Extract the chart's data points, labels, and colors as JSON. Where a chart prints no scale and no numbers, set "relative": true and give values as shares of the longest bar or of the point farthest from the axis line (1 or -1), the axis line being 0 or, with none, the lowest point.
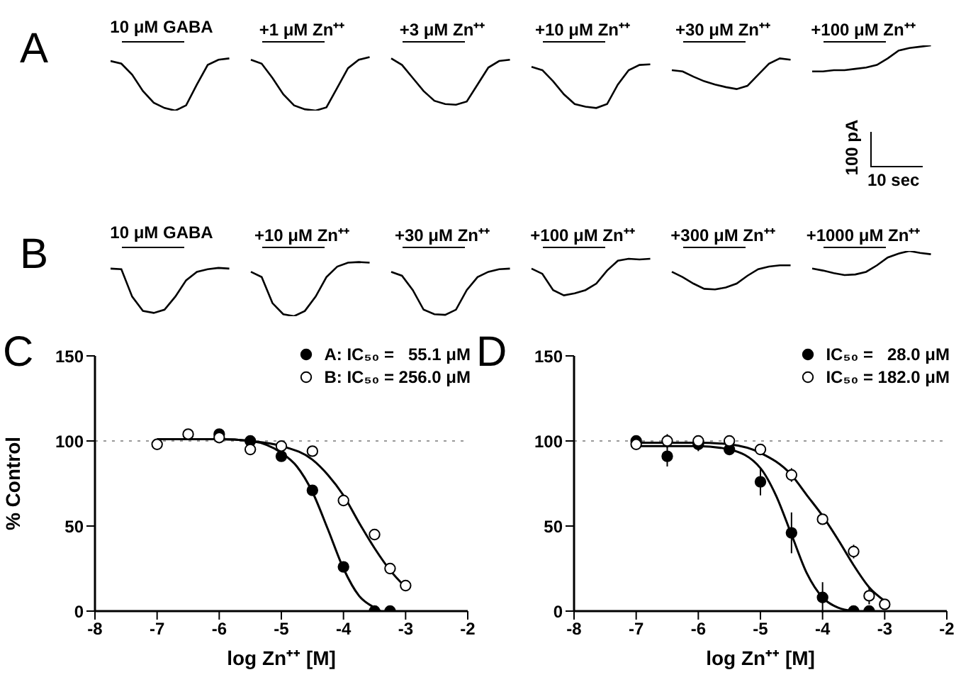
{
  "chart_data": [
    {
      "type": "line",
      "title": "A",
      "relative": true,
      "categories": [
        null,
        null,
        null,
        null,
        null,
        null,
        null,
        null,
        null,
        null,
        null,
        null,
        null,
        null,
        null,
        null,
        null,
        null,
        null,
        null,
        null,
        null,
        null,
        null,
        null,
        null,
        null,
        null,
        null,
        null,
        null,
        null,
        null,
        null,
        null,
        null,
        null,
        null,
        null,
        null,
        null,
        null,
        null,
        null,
        null,
        null,
        null,
        null,
        null,
        null,
        null,
        null,
        null,
        null,
        null,
        null,
        null,
        null,
        null,
        null,
        null,
        null,
        null,
        null,
        null,
        null,
        null,
        null,
        null,
        null,
        null,
        null,
        null,
        null,
        null,
        null,
        null,
        null
      ],
      "series": [
        {
          "color": "#000000",
          "values": [
            0.76,
            0.72,
            0.55,
            0.3,
            0.12,
            0.04,
            0.0,
            0.08,
            0.4,
            0.7,
            0.78,
            0.8,
            null,
            null,
            null,
            null,
            null,
            null,
            null,
            null,
            null,
            null,
            null,
            null,
            null,
            null,
            null,
            null,
            null,
            null,
            null,
            null,
            null,
            null,
            null,
            null,
            null,
            null,
            null,
            null,
            null,
            null,
            null,
            null,
            null,
            null,
            null,
            null,
            null,
            null,
            null,
            null,
            null,
            null,
            null,
            null,
            null,
            null,
            null,
            null,
            null,
            null,
            null,
            null,
            null,
            null,
            null,
            null,
            null,
            null,
            null,
            null,
            null,
            null,
            null,
            null,
            null,
            null
          ]
        },
        {
          "color": "#000000",
          "values": [
            null,
            null,
            null,
            null,
            null,
            null,
            null,
            null,
            null,
            null,
            null,
            null,
            null,
            0.78,
            0.72,
            0.5,
            0.25,
            0.08,
            0.02,
            0.0,
            0.05,
            0.35,
            0.65,
            0.78,
            0.82,
            null,
            null,
            null,
            null,
            null,
            null,
            null,
            null,
            null,
            null,
            null,
            null,
            null,
            null,
            null,
            null,
            null,
            null,
            null,
            null,
            null,
            null,
            null,
            null,
            null,
            null,
            null,
            null,
            null,
            null,
            null,
            null,
            null,
            null,
            null,
            null,
            null,
            null,
            null,
            null,
            null,
            null,
            null,
            null,
            null,
            null,
            null,
            null,
            null,
            null,
            null,
            null,
            null
          ]
        },
        {
          "color": "#000000",
          "values": [
            null,
            null,
            null,
            null,
            null,
            null,
            null,
            null,
            null,
            null,
            null,
            null,
            null,
            null,
            null,
            null,
            null,
            null,
            null,
            null,
            null,
            null,
            null,
            null,
            null,
            null,
            0.8,
            0.7,
            0.5,
            0.3,
            0.15,
            0.1,
            0.09,
            0.14,
            0.4,
            0.66,
            0.76,
            0.78,
            null,
            null,
            null,
            null,
            null,
            null,
            null,
            null,
            null,
            null,
            null,
            null,
            null,
            null,
            null,
            null,
            null,
            null,
            null,
            null,
            null,
            null,
            null,
            null,
            null,
            null,
            null,
            null,
            null,
            null,
            null,
            null,
            null,
            null,
            null,
            null,
            null,
            null,
            null,
            null
          ]
        },
        {
          "color": "#000000",
          "values": [
            null,
            null,
            null,
            null,
            null,
            null,
            null,
            null,
            null,
            null,
            null,
            null,
            null,
            null,
            null,
            null,
            null,
            null,
            null,
            null,
            null,
            null,
            null,
            null,
            null,
            null,
            null,
            null,
            null,
            null,
            null,
            null,
            null,
            null,
            null,
            null,
            null,
            null,
            null,
            0.67,
            0.62,
            0.45,
            0.25,
            0.1,
            0.06,
            0.04,
            0.1,
            0.4,
            0.62,
            0.7,
            0.71,
            null,
            null,
            null,
            null,
            null,
            null,
            null,
            null,
            null,
            null,
            null,
            null,
            null,
            null,
            null,
            null,
            null,
            null,
            null,
            null,
            null,
            null,
            null,
            null,
            null,
            null,
            null
          ]
        },
        {
          "color": "#000000",
          "values": [
            null,
            null,
            null,
            null,
            null,
            null,
            null,
            null,
            null,
            null,
            null,
            null,
            null,
            null,
            null,
            null,
            null,
            null,
            null,
            null,
            null,
            null,
            null,
            null,
            null,
            null,
            null,
            null,
            null,
            null,
            null,
            null,
            null,
            null,
            null,
            null,
            null,
            null,
            null,
            null,
            null,
            null,
            null,
            null,
            null,
            null,
            null,
            null,
            null,
            null,
            null,
            null,
            0.62,
            0.6,
            0.52,
            0.45,
            0.4,
            0.36,
            0.33,
            0.38,
            0.55,
            0.72,
            0.8,
            0.78,
            null,
            null,
            null,
            null,
            null,
            null,
            null,
            null,
            null,
            null,
            null,
            null,
            null,
            null
          ]
        },
        {
          "color": "#000000",
          "values": [
            null,
            null,
            null,
            null,
            null,
            null,
            null,
            null,
            null,
            null,
            null,
            null,
            null,
            null,
            null,
            null,
            null,
            null,
            null,
            null,
            null,
            null,
            null,
            null,
            null,
            null,
            null,
            null,
            null,
            null,
            null,
            null,
            null,
            null,
            null,
            null,
            null,
            null,
            null,
            null,
            null,
            null,
            null,
            null,
            null,
            null,
            null,
            null,
            null,
            null,
            null,
            null,
            null,
            null,
            null,
            null,
            null,
            null,
            null,
            null,
            null,
            null,
            null,
            null,
            null,
            0.6,
            0.6,
            0.62,
            0.62,
            0.64,
            0.66,
            0.7,
            0.8,
            0.92,
            0.96,
            0.98,
            1.0,
            null
          ]
        }
      ],
      "annotations": [
        "10 μM GABA",
        "+1 μM Zn⁺⁺",
        "+3 μM Zn⁺⁺",
        "+10 μM Zn⁺⁺",
        "+30 μM Zn⁺⁺",
        "+100 μM Zn⁺⁺",
        "100 pA",
        "10 sec"
      ]
    },
    {
      "type": "line",
      "title": "B",
      "relative": true,
      "categories": [
        null,
        null,
        null,
        null,
        null,
        null,
        null,
        null,
        null,
        null,
        null,
        null,
        null,
        null,
        null,
        null,
        null,
        null,
        null,
        null,
        null,
        null,
        null,
        null,
        null,
        null,
        null,
        null,
        null,
        null,
        null,
        null,
        null,
        null,
        null,
        null,
        null,
        null,
        null,
        null,
        null,
        null,
        null,
        null,
        null,
        null,
        null,
        null,
        null,
        null,
        null,
        null,
        null,
        null,
        null,
        null,
        null,
        null,
        null,
        null,
        null,
        null,
        null,
        null,
        null,
        null,
        null,
        null,
        null,
        null,
        null,
        null,
        null,
        null,
        null,
        null,
        null,
        null
      ],
      "series": [
        {
          "color": "#000000",
          "values": [
            0.73,
            0.72,
            0.3,
            0.08,
            0.05,
            0.1,
            0.3,
            0.55,
            0.68,
            0.72,
            0.74,
            0.73,
            null,
            null,
            null,
            null,
            null,
            null,
            null,
            null,
            null,
            null,
            null,
            null,
            null,
            null,
            null,
            null,
            null,
            null,
            null,
            null,
            null,
            null,
            null,
            null,
            null,
            null,
            null,
            null,
            null,
            null,
            null,
            null,
            null,
            null,
            null,
            null,
            null,
            null,
            null,
            null,
            null,
            null,
            null,
            null,
            null,
            null,
            null,
            null,
            null,
            null,
            null,
            null,
            null,
            null,
            null,
            null,
            null,
            null,
            null,
            null,
            null,
            null,
            null,
            null,
            null,
            null
          ]
        },
        {
          "color": "#000000",
          "values": [
            null,
            null,
            null,
            null,
            null,
            null,
            null,
            null,
            null,
            null,
            null,
            null,
            null,
            0.68,
            0.6,
            0.2,
            0.03,
            0.0,
            0.08,
            0.3,
            0.6,
            0.76,
            0.82,
            0.83,
            0.82,
            null,
            null,
            null,
            null,
            null,
            null,
            null,
            null,
            null,
            null,
            null,
            null,
            null,
            null,
            null,
            null,
            null,
            null,
            null,
            null,
            null,
            null,
            null,
            null,
            null,
            null,
            null,
            null,
            null,
            null,
            null,
            null,
            null,
            null,
            null,
            null,
            null,
            null,
            null,
            null,
            null,
            null,
            null,
            null,
            null,
            null,
            null,
            null,
            null,
            null,
            null,
            null,
            null
          ]
        },
        {
          "color": "#000000",
          "values": [
            null,
            null,
            null,
            null,
            null,
            null,
            null,
            null,
            null,
            null,
            null,
            null,
            null,
            null,
            null,
            null,
            null,
            null,
            null,
            null,
            null,
            null,
            null,
            null,
            null,
            null,
            0.68,
            0.62,
            0.4,
            0.1,
            0.03,
            0.02,
            0.1,
            0.4,
            0.6,
            0.68,
            0.72,
            0.73,
            null,
            null,
            null,
            null,
            null,
            null,
            null,
            null,
            null,
            null,
            null,
            null,
            null,
            null,
            null,
            null,
            null,
            null,
            null,
            null,
            null,
            null,
            null,
            null,
            null,
            null,
            null,
            null,
            null,
            null,
            null,
            null,
            null,
            null,
            null,
            null,
            null,
            null,
            null,
            null
          ]
        },
        {
          "color": "#000000",
          "values": [
            null,
            null,
            null,
            null,
            null,
            null,
            null,
            null,
            null,
            null,
            null,
            null,
            null,
            null,
            null,
            null,
            null,
            null,
            null,
            null,
            null,
            null,
            null,
            null,
            null,
            null,
            null,
            null,
            null,
            null,
            null,
            null,
            null,
            null,
            null,
            null,
            null,
            null,
            null,
            0.73,
            0.65,
            0.4,
            0.32,
            0.35,
            0.4,
            0.5,
            0.7,
            0.85,
            0.88,
            0.87,
            0.88,
            null,
            null,
            null,
            null,
            null,
            null,
            null,
            null,
            null,
            null,
            null,
            null,
            null,
            null,
            null,
            null,
            null,
            null,
            null,
            null,
            null,
            null,
            null,
            null,
            null,
            null,
            null
          ]
        },
        {
          "color": "#000000",
          "values": [
            null,
            null,
            null,
            null,
            null,
            null,
            null,
            null,
            null,
            null,
            null,
            null,
            null,
            null,
            null,
            null,
            null,
            null,
            null,
            null,
            null,
            null,
            null,
            null,
            null,
            null,
            null,
            null,
            null,
            null,
            null,
            null,
            null,
            null,
            null,
            null,
            null,
            null,
            null,
            null,
            null,
            null,
            null,
            null,
            null,
            null,
            null,
            null,
            null,
            null,
            null,
            null,
            0.68,
            0.6,
            0.5,
            0.42,
            0.41,
            0.44,
            0.5,
            0.62,
            0.72,
            0.76,
            0.78,
            0.78,
            null,
            null,
            null,
            null,
            null,
            null,
            null,
            null,
            null,
            null,
            null,
            null,
            null,
            null
          ]
        },
        {
          "color": "#000000",
          "values": [
            null,
            null,
            null,
            null,
            null,
            null,
            null,
            null,
            null,
            null,
            null,
            null,
            null,
            null,
            null,
            null,
            null,
            null,
            null,
            null,
            null,
            null,
            null,
            null,
            null,
            null,
            null,
            null,
            null,
            null,
            null,
            null,
            null,
            null,
            null,
            null,
            null,
            null,
            null,
            null,
            null,
            null,
            null,
            null,
            null,
            null,
            null,
            null,
            null,
            null,
            null,
            null,
            null,
            null,
            null,
            null,
            null,
            null,
            null,
            null,
            null,
            null,
            null,
            null,
            null,
            0.73,
            0.7,
            0.66,
            0.63,
            0.64,
            0.68,
            0.78,
            0.9,
            0.96,
            1.0,
            0.97,
            0.95,
            null
          ]
        }
      ],
      "annotations": [
        "10 μM GABA",
        "+10 μM Zn⁺⁺",
        "+30 μM Zn⁺⁺",
        "+100 μM Zn⁺⁺",
        "+300 μM Zn⁺⁺",
        "+1000 μM Zn⁺⁺"
      ]
    },
    {
      "type": "scatter",
      "title": "C",
      "xlabel": "log Zn⁺⁺ [M]",
      "ylabel": "% Control",
      "xlim": [
        -8,
        -2
      ],
      "xticks": [
        -8,
        -7,
        -6,
        -5,
        -4,
        -3,
        -2
      ],
      "ylim": [
        0,
        150
      ],
      "yticks": [
        0,
        50,
        100,
        150
      ],
      "legend": "top right",
      "marker": "circle",
      "ref_lines": [
        {
          "axis": "y",
          "value": 100,
          "line_style": "dotted",
          "color": "#999999"
        }
      ],
      "series": [
        {
          "type": "line",
          "marker": "none",
          "color": "#000000",
          "x": [
            -7,
            -6,
            -5.5,
            -5,
            -4.75,
            -4.5,
            -4.25,
            -4,
            -3.75,
            -3.5,
            -3.4
          ],
          "values": [
            101,
            101,
            100,
            93,
            85,
            70,
            48,
            25,
            9,
            2,
            0
          ]
        },
        {
          "type": "line",
          "marker": "none",
          "color": "#000000",
          "x": [
            -7,
            -6,
            -5.5,
            -5,
            -4.5,
            -4.25,
            -4,
            -3.75,
            -3.5,
            -3.25,
            -3
          ],
          "values": [
            101,
            101,
            100,
            97,
            89,
            80,
            68,
            52,
            37,
            24,
            14
          ]
        },
        {
          "name": "A: IC₅₀ =   55.1 μM",
          "color": "#000000",
          "x": [
            -6,
            -5.5,
            -5,
            -4.5,
            -4,
            -3.5,
            -3.25
          ],
          "values": [
            104,
            100,
            91,
            71,
            26,
            0,
            0
          ]
        },
        {
          "name": "B: IC₅₀ = 256.0 μM",
          "color": "#ffffff",
          "x": [
            -7,
            -6.5,
            -6,
            -5.5,
            -5,
            -4.5,
            -4,
            -3.5,
            -3.25,
            -3
          ],
          "values": [
            98,
            104,
            102,
            95,
            97,
            94,
            65,
            45,
            25,
            15
          ]
        }
      ]
    },
    {
      "type": "scatter",
      "title": "D",
      "xlabel": "log Zn⁺⁺ [M]",
      "xlim": [
        -8,
        -2
      ],
      "xticks": [
        -8,
        -7,
        -6,
        -5,
        -4,
        -3,
        -2
      ],
      "ylim": [
        0,
        150
      ],
      "yticks": [
        0,
        50,
        100,
        150
      ],
      "legend": "top right",
      "marker": "circle",
      "ref_lines": [
        {
          "axis": "y",
          "value": 100,
          "line_style": "dotted",
          "color": "#999999"
        }
      ],
      "series": [
        {
          "type": "line",
          "marker": "none",
          "color": "#000000",
          "x": [
            -7,
            -6,
            -5.5,
            -5,
            -4.75,
            -4.5,
            -4.25,
            -4,
            -3.75,
            -3.5
          ],
          "values": [
            97,
            97,
            95,
            84,
            68,
            45,
            22,
            8,
            2,
            0
          ]
        },
        {
          "type": "line",
          "marker": "none",
          "color": "#000000",
          "x": [
            -7,
            -6,
            -5.5,
            -5,
            -4.5,
            -4.25,
            -4,
            -3.75,
            -3.5,
            -3.25,
            -3
          ],
          "values": [
            99,
            99,
            98,
            93,
            80,
            68,
            56,
            42,
            27,
            14,
            6
          ]
        },
        {
          "name": "IC₅₀ =   28.0 μM",
          "color": "#000000",
          "x": [
            -7,
            -6.5,
            -6,
            -5.5,
            -5,
            -4.5,
            -4,
            -3.5,
            -3.25
          ],
          "values": [
            100,
            91,
            98,
            95,
            76,
            46,
            8,
            0,
            0
          ],
          "errors": [
            null,
            6,
            4,
            3,
            8,
            12,
            9,
            null,
            null
          ]
        },
        {
          "name": "IC₅₀ = 182.0 μM",
          "color": "#ffffff",
          "x": [
            -7,
            -6.5,
            -6,
            -5.5,
            -5,
            -4.5,
            -4,
            -3.5,
            -3.25,
            -3
          ],
          "values": [
            98,
            100,
            100,
            100,
            95,
            80,
            54,
            35,
            9,
            4
          ],
          "errors": [
            null,
            4,
            3,
            2,
            3,
            4,
            3,
            4,
            5,
            null
          ]
        }
      ]
    }
  ]
}
